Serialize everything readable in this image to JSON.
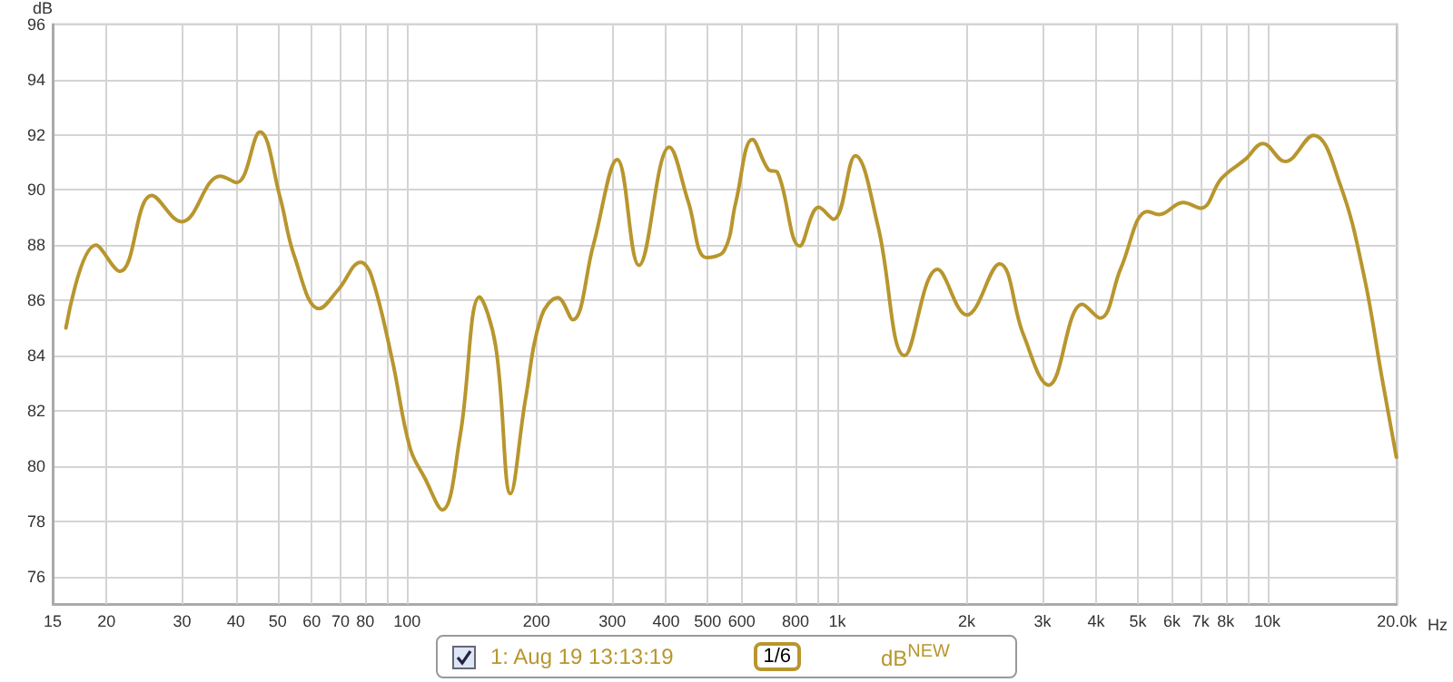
{
  "chart_data": {
    "type": "line",
    "xlabel": "Hz",
    "ylabel": "dB",
    "log": "x",
    "grid": true,
    "legend": "bottom",
    "marker": "none",
    "line_style": "solid",
    "xlim": [
      15,
      20000
    ],
    "ylim": [
      75,
      96
    ],
    "xticks": [
      15,
      20,
      30,
      40,
      50,
      60,
      70,
      80,
      {
        "value": 90,
        "label": null
      },
      100,
      200,
      300,
      400,
      500,
      600,
      800,
      {
        "value": 900,
        "label": null
      },
      {
        "value": 1000,
        "label": "1k"
      },
      {
        "value": 2000,
        "label": "2k"
      },
      {
        "value": 3000,
        "label": "3k"
      },
      {
        "value": 4000,
        "label": "4k"
      },
      {
        "value": 5000,
        "label": "5k"
      },
      {
        "value": 6000,
        "label": "6k"
      },
      {
        "value": 7000,
        "label": "7k"
      },
      {
        "value": 8000,
        "label": "8k"
      },
      {
        "value": 9000,
        "label": null
      },
      {
        "value": 10000,
        "label": "10k"
      },
      {
        "value": 20000,
        "label": "20.0k"
      }
    ],
    "yticks": [
      76,
      78,
      80,
      82,
      84,
      86,
      88,
      90,
      92,
      94,
      96
    ],
    "annotations": [
      "1/6",
      "dB$^{NEW}$"
    ],
    "series": [
      {
        "name": "1: Aug 19 13:13:19",
        "color": "#b8962e",
        "x": [
          16.1,
          18.9,
          21.5,
          25.5,
          29.9,
          36.8,
          40.2,
          45.5,
          50.6,
          54.7,
          62.5,
          69.3,
          78,
          82.6,
          92.2,
          101.6,
          110,
          120.8,
          132.8,
          147.4,
          160.7,
          174,
          188.4,
          205,
          224,
          242.7,
          271,
          308,
          346,
          407,
          451,
          496,
          546,
          581,
          635,
          692,
          726,
          818,
          906,
          981,
          1102,
          1244,
          1435,
          1710,
          2001,
          2384,
          2707,
          3100,
          3714,
          4085,
          4563,
          5263,
          5607,
          6368,
          7003,
          7826,
          8890,
          9770,
          10990,
          12800,
          14760,
          16750,
          18440,
          19950
        ],
        "values": [
          85.0,
          88.0,
          87.05,
          89.8,
          88.85,
          90.5,
          90.27,
          92.1,
          89.77,
          87.6,
          85.7,
          86.4,
          87.38,
          86.9,
          83.9,
          80.65,
          79.56,
          78.41,
          81.08,
          86.12,
          84.34,
          79.0,
          82.4,
          85.4,
          86.1,
          85.3,
          88.0,
          91.1,
          87.27,
          91.55,
          89.55,
          87.55,
          87.8,
          89.55,
          91.83,
          90.74,
          90.64,
          87.97,
          89.37,
          88.94,
          91.24,
          88.68,
          84.0,
          87.12,
          85.47,
          87.32,
          84.77,
          82.93,
          85.86,
          85.36,
          87.16,
          89.22,
          89.11,
          89.55,
          89.34,
          90.42,
          91.11,
          91.68,
          91.03,
          91.98,
          90.2,
          86.94,
          83.25,
          80.32
        ]
      }
    ]
  }
}
